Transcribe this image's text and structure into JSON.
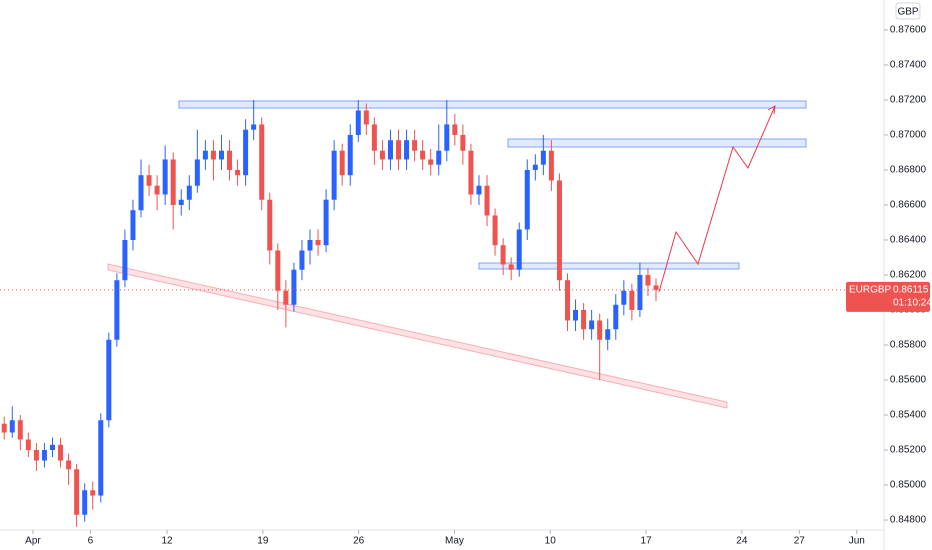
{
  "chart_data": {
    "type": "candlestick",
    "symbol": "EURGBP",
    "currency": "GBP",
    "last_price": 0.86115,
    "countdown": "01:10:24",
    "up_color": "#2962ff",
    "down_color": "#ef5350",
    "grid": false,
    "xlim": [
      -1.72,
      44.42
    ],
    "ylim": [
      0.84743,
      0.87771
    ],
    "xticks": [
      {
        "value": 0,
        "label": "Apr"
      },
      {
        "value": 3,
        "label": "6"
      },
      {
        "value": 7,
        "label": "12"
      },
      {
        "value": 12,
        "label": "19"
      },
      {
        "value": 17,
        "label": "26"
      },
      {
        "value": 22,
        "label": "May"
      },
      {
        "value": 27,
        "label": "10"
      },
      {
        "value": 32,
        "label": "17"
      },
      {
        "value": 37,
        "label": "24"
      },
      {
        "value": 40,
        "label": "27"
      },
      {
        "value": 43,
        "label": "Jun"
      }
    ],
    "yticks": [
      {
        "value": 0.848,
        "label": "0.84800"
      },
      {
        "value": 0.85,
        "label": "0.85000"
      },
      {
        "value": 0.852,
        "label": "0.85200"
      },
      {
        "value": 0.854,
        "label": "0.85400"
      },
      {
        "value": 0.856,
        "label": "0.85600"
      },
      {
        "value": 0.858,
        "label": "0.85800"
      },
      {
        "value": 0.86,
        "label": "0.86000"
      },
      {
        "value": 0.862,
        "label": "0.86200"
      },
      {
        "value": 0.864,
        "label": "0.86400"
      },
      {
        "value": 0.866,
        "label": "0.86600"
      },
      {
        "value": 0.868,
        "label": "0.86800"
      },
      {
        "value": 0.87,
        "label": "0.87000"
      },
      {
        "value": 0.872,
        "label": "0.87200"
      },
      {
        "value": 0.874,
        "label": "0.87400"
      },
      {
        "value": 0.876,
        "label": "0.87600"
      }
    ],
    "x": [
      -1.5,
      -1.08,
      -0.66,
      -0.24,
      0.18,
      0.6,
      1.02,
      1.44,
      1.86,
      2.28,
      2.7,
      3.12,
      3.54,
      3.96,
      4.38,
      4.8,
      5.22,
      5.64,
      6.06,
      6.48,
      6.9,
      7.32,
      7.74,
      8.16,
      8.58,
      9.0,
      9.42,
      9.84,
      10.26,
      10.68,
      11.1,
      11.52,
      11.94,
      12.36,
      12.78,
      13.2,
      13.62,
      14.04,
      14.46,
      14.88,
      15.3,
      15.72,
      16.14,
      16.56,
      16.98,
      17.4,
      17.82,
      18.24,
      18.66,
      19.08,
      19.5,
      19.92,
      20.34,
      20.76,
      21.18,
      21.6,
      22.02,
      22.44,
      22.86,
      23.28,
      23.7,
      24.12,
      24.54,
      24.96,
      25.38,
      25.8,
      26.22,
      26.64,
      27.06,
      27.48,
      27.9,
      28.32,
      28.74,
      29.16,
      29.58,
      30.0,
      30.42,
      30.84,
      31.26,
      31.68,
      32.1,
      32.52
    ],
    "open": [
      0.8535,
      0.853,
      0.8537,
      0.8526,
      0.852,
      0.8514,
      0.852,
      0.8523,
      0.8514,
      0.8509,
      0.8483,
      0.8497,
      0.8494,
      0.8537,
      0.8583,
      0.8617,
      0.864,
      0.8657,
      0.8677,
      0.8671,
      0.8666,
      0.8686,
      0.866,
      0.8663,
      0.8671,
      0.8686,
      0.8691,
      0.8686,
      0.8691,
      0.868,
      0.8677,
      0.8703,
      0.8706,
      0.8663,
      0.8634,
      0.8611,
      0.8603,
      0.8623,
      0.8634,
      0.864,
      0.8637,
      0.8663,
      0.8691,
      0.8677,
      0.87,
      0.8714,
      0.8706,
      0.8691,
      0.8686,
      0.8697,
      0.8686,
      0.8697,
      0.8691,
      0.8686,
      0.8683,
      0.8691,
      0.8706,
      0.87,
      0.8691,
      0.8666,
      0.8671,
      0.8654,
      0.8637,
      0.8626,
      0.8623,
      0.8646,
      0.868,
      0.8683,
      0.8691,
      0.8674,
      0.8617,
      0.8594,
      0.86,
      0.8589,
      0.8594,
      0.8583,
      0.8589,
      0.8603,
      0.8611,
      0.86,
      0.862,
      0.8614
    ],
    "high": [
      0.8539,
      0.8545,
      0.854,
      0.853,
      0.8524,
      0.8524,
      0.8527,
      0.8527,
      0.8518,
      0.8512,
      0.8501,
      0.8502,
      0.8541,
      0.8587,
      0.8621,
      0.8646,
      0.8663,
      0.8686,
      0.8683,
      0.8677,
      0.8694,
      0.869,
      0.8669,
      0.8677,
      0.8703,
      0.8697,
      0.8697,
      0.87,
      0.8697,
      0.8686,
      0.8709,
      0.872,
      0.871,
      0.8667,
      0.8638,
      0.8617,
      0.8627,
      0.864,
      0.8646,
      0.8646,
      0.8669,
      0.8697,
      0.8695,
      0.8706,
      0.872,
      0.8718,
      0.871,
      0.8697,
      0.8703,
      0.8703,
      0.8703,
      0.8703,
      0.8697,
      0.8692,
      0.8706,
      0.872,
      0.8712,
      0.8706,
      0.8695,
      0.8677,
      0.8677,
      0.8658,
      0.8641,
      0.863,
      0.865,
      0.8686,
      0.8689,
      0.87,
      0.8697,
      0.8678,
      0.8621,
      0.8606,
      0.8604,
      0.86,
      0.8598,
      0.8595,
      0.8609,
      0.8617,
      0.8615,
      0.8627,
      0.8624,
      0.8618
    ],
    "low": [
      0.8526,
      0.8527,
      0.852,
      0.8516,
      0.8508,
      0.851,
      0.8516,
      0.851,
      0.85,
      0.8476,
      0.8479,
      0.8486,
      0.849,
      0.8533,
      0.8579,
      0.8613,
      0.8634,
      0.8653,
      0.8665,
      0.8657,
      0.866,
      0.8646,
      0.8654,
      0.8657,
      0.8667,
      0.868,
      0.8674,
      0.868,
      0.8674,
      0.8671,
      0.8671,
      0.8697,
      0.8657,
      0.8626,
      0.86,
      0.859,
      0.8599,
      0.8617,
      0.8626,
      0.8631,
      0.8633,
      0.8657,
      0.8671,
      0.8671,
      0.8696,
      0.87,
      0.8683,
      0.868,
      0.868,
      0.868,
      0.868,
      0.8685,
      0.868,
      0.8677,
      0.8677,
      0.8685,
      0.8694,
      0.8683,
      0.866,
      0.866,
      0.8648,
      0.8631,
      0.862,
      0.8617,
      0.8619,
      0.864,
      0.8674,
      0.8677,
      0.8668,
      0.8611,
      0.8588,
      0.8588,
      0.8583,
      0.8583,
      0.856,
      0.8577,
      0.8583,
      0.8597,
      0.8594,
      0.8596,
      0.8608,
      0.8605
    ],
    "close": [
      0.853,
      0.8537,
      0.8526,
      0.852,
      0.8514,
      0.852,
      0.8523,
      0.8514,
      0.8509,
      0.8483,
      0.8497,
      0.8494,
      0.8537,
      0.8583,
      0.8617,
      0.864,
      0.8657,
      0.8677,
      0.8671,
      0.8666,
      0.8686,
      0.866,
      0.8663,
      0.8671,
      0.8686,
      0.8691,
      0.8686,
      0.8691,
      0.868,
      0.8677,
      0.8703,
      0.8706,
      0.8663,
      0.8634,
      0.8611,
      0.8603,
      0.8623,
      0.8634,
      0.864,
      0.8637,
      0.8663,
      0.8691,
      0.8677,
      0.87,
      0.8714,
      0.8706,
      0.8691,
      0.8686,
      0.8697,
      0.8686,
      0.8697,
      0.8691,
      0.8686,
      0.8683,
      0.8691,
      0.8706,
      0.87,
      0.8691,
      0.8666,
      0.8671,
      0.8654,
      0.8637,
      0.8626,
      0.8623,
      0.8646,
      0.868,
      0.8683,
      0.8691,
      0.8674,
      0.8617,
      0.8594,
      0.86,
      0.8589,
      0.8594,
      0.8583,
      0.8589,
      0.8603,
      0.8611,
      0.86,
      0.862,
      0.8614,
      0.86115
    ]
  }
}
